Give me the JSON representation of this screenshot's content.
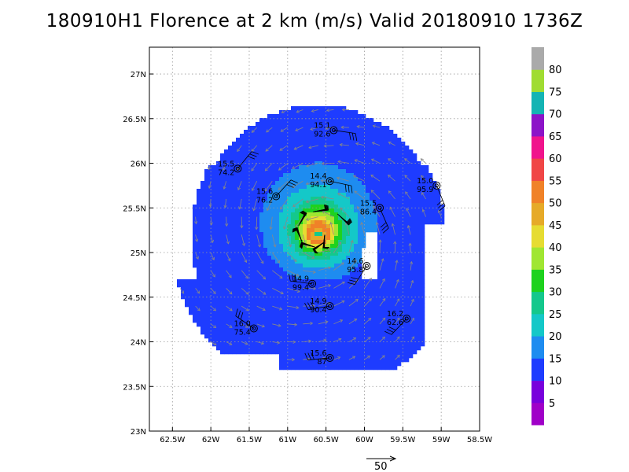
{
  "title": "180910H1 Florence at 2 km (m/s) Valid 20180910 1736Z",
  "chart_data": {
    "type": "heatmap",
    "title": "180910H1 Florence at 2 km (m/s) Valid 20180910 1736Z",
    "x_ticks": [
      "62.5W",
      "62W",
      "61.5W",
      "61W",
      "60.5W",
      "60W",
      "59.5W",
      "59W",
      "58.5W"
    ],
    "y_ticks": [
      "27N",
      "26.5N",
      "26N",
      "25.5N",
      "25N",
      "24.5N",
      "24N",
      "23.5N",
      "23N"
    ],
    "xlim": [
      -62.8,
      -58.5
    ],
    "ylim": [
      23.0,
      27.3
    ],
    "grid": true,
    "center": {
      "lon": -60.6,
      "lat": 25.2
    },
    "colorbar": {
      "labels": [
        "5",
        "10",
        "15",
        "20",
        "25",
        "30",
        "35",
        "40",
        "45",
        "50",
        "55",
        "60",
        "65",
        "70",
        "75",
        "80"
      ],
      "colors": [
        "#a000c8",
        "#7800dc",
        "#1e3cff",
        "#1e8cf0",
        "#14c8c8",
        "#14c88c",
        "#1ed21e",
        "#a0e632",
        "#e6dc32",
        "#e6aa28",
        "#f08228",
        "#f04646",
        "#f0148c",
        "#8c14c8",
        "#14b4b4",
        "#a0dc32",
        "#aaaaaa"
      ]
    },
    "observations": [
      {
        "lon": -60.4,
        "lat": 26.37,
        "speed": "15.1",
        "pressure": "92.6"
      },
      {
        "lon": -61.65,
        "lat": 25.94,
        "speed": "15.5",
        "pressure": "74.2"
      },
      {
        "lon": -60.45,
        "lat": 25.8,
        "speed": "14.4",
        "pressure": "94.1"
      },
      {
        "lon": -59.06,
        "lat": 25.75,
        "speed": "15.0",
        "pressure": "95.9"
      },
      {
        "lon": -61.15,
        "lat": 25.63,
        "speed": "15.6",
        "pressure": "76.2"
      },
      {
        "lon": -59.8,
        "lat": 25.5,
        "speed": "15.5",
        "pressure": "86.4"
      },
      {
        "lon": -59.97,
        "lat": 24.85,
        "speed": "14.6",
        "pressure": "95.8"
      },
      {
        "lon": -60.68,
        "lat": 24.65,
        "speed": "14.9",
        "pressure": "99.4"
      },
      {
        "lon": -60.45,
        "lat": 24.4,
        "speed": "14.9",
        "pressure": "90.4"
      },
      {
        "lon": -59.45,
        "lat": 24.26,
        "speed": "16.2",
        "pressure": "62.6"
      },
      {
        "lon": -61.44,
        "lat": 24.15,
        "speed": "16.0",
        "pressure": "75.4"
      },
      {
        "lon": -60.45,
        "lat": 23.82,
        "speed": "15.6",
        "pressure": "87"
      }
    ],
    "reference_vector": {
      "label": "50"
    }
  }
}
